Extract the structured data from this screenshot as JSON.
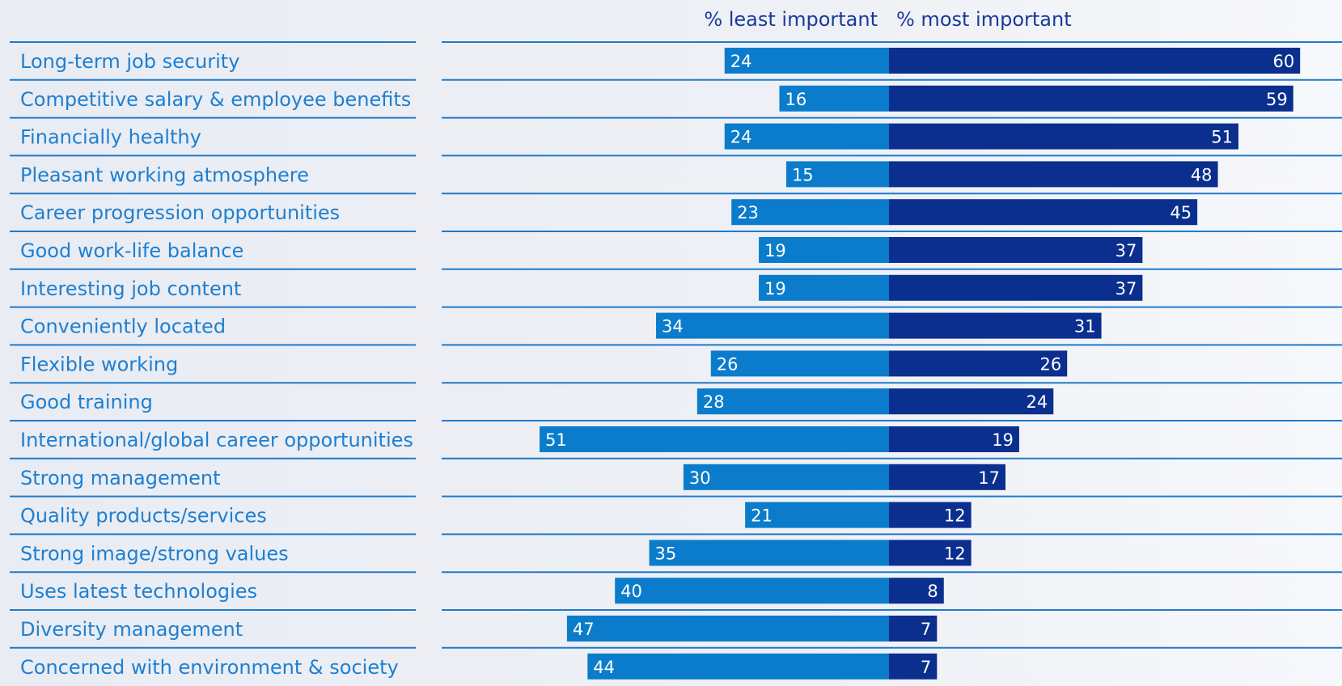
{
  "chart_data": {
    "type": "bar",
    "orientation": "diverging-horizontal",
    "legend": {
      "least": "% least important",
      "most": "% most important"
    },
    "categories": [
      "Long-term job security",
      "Competitive salary & employee benefits",
      "Financially healthy",
      "Pleasant working atmosphere",
      "Career progression opportunities",
      "Good work-life balance",
      "Interesting job content",
      "Conveniently located",
      "Flexible working",
      "Good training",
      "International/global career opportunities",
      "Strong management",
      "Quality products/services",
      "Strong image/strong values",
      "Uses latest technologies",
      "Diversity management",
      "Concerned with environment & society"
    ],
    "series": [
      {
        "name": "% least important",
        "values": [
          24,
          16,
          24,
          15,
          23,
          19,
          19,
          34,
          26,
          28,
          51,
          30,
          21,
          35,
          40,
          47,
          44
        ]
      },
      {
        "name": "% most important",
        "values": [
          60,
          59,
          51,
          48,
          45,
          37,
          37,
          31,
          26,
          24,
          19,
          17,
          12,
          12,
          8,
          7,
          7
        ]
      }
    ],
    "colors": {
      "least": "#0a7ccb",
      "most": "#0a2f8e",
      "label_text": "#1e7fd0",
      "legend_text": "#1a3a9c",
      "rule": "#1f7ac9"
    }
  }
}
